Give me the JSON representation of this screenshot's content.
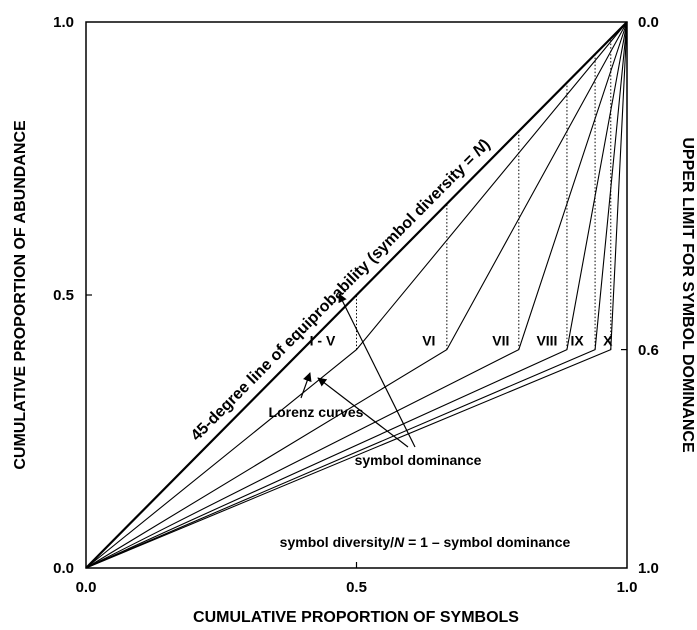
{
  "chart_data": {
    "type": "line",
    "xlabel": "CUMULATIVE PROPORTION OF SYMBOLS",
    "ylabel": "CUMULATIVE PROPORTION OF ABUNDANCE",
    "y2label": "UPPER LIMIT FOR SYMBOL DOMINANCE",
    "xlim": [
      0,
      1
    ],
    "ylim": [
      0,
      1
    ],
    "x_ticks": [
      "0.0",
      "0.5",
      "1.0"
    ],
    "y_ticks": [
      "0.0",
      "0.5",
      "1.0"
    ],
    "y2_ticks": [
      "1.0",
      "0.6",
      "0.0"
    ],
    "grid": false,
    "equiprobability_line": {
      "label_prefix": "45-degree line of equiprobability (symbol diversity = ",
      "label_var": "N",
      "label_suffix": ")",
      "points": [
        [
          0,
          0
        ],
        [
          1,
          1
        ]
      ]
    },
    "series": [
      {
        "label": "I - V",
        "x": [
          0,
          0.5,
          1
        ],
        "y": [
          0,
          0.4,
          1
        ],
        "dotted_x": 0.5,
        "dotted_top": 0.5
      },
      {
        "label": "VI",
        "x": [
          0,
          0.667,
          1
        ],
        "y": [
          0,
          0.4,
          1
        ],
        "dotted_x": 0.667,
        "dotted_top": 0.667
      },
      {
        "label": "VII",
        "x": [
          0,
          0.8,
          1
        ],
        "y": [
          0,
          0.4,
          1
        ],
        "dotted_x": 0.8,
        "dotted_top": 0.8
      },
      {
        "label": "VIII",
        "x": [
          0,
          0.889,
          1
        ],
        "y": [
          0,
          0.4,
          1
        ],
        "dotted_x": 0.889,
        "dotted_top": 0.889
      },
      {
        "label": "IX",
        "x": [
          0,
          0.941,
          1
        ],
        "y": [
          0,
          0.4,
          1
        ],
        "dotted_x": 0.941,
        "dotted_top": 0.941
      },
      {
        "label": "X",
        "x": [
          0,
          0.97,
          1
        ],
        "y": [
          0,
          0.4,
          1
        ],
        "dotted_x": 0.97,
        "dotted_top": 0.97
      }
    ],
    "annotations": {
      "symbol_dominance": "symbol dominance",
      "lorenz_curves": "Lorenz curves",
      "formula": "symbol diversity/N = 1 – symbol dominance"
    }
  }
}
